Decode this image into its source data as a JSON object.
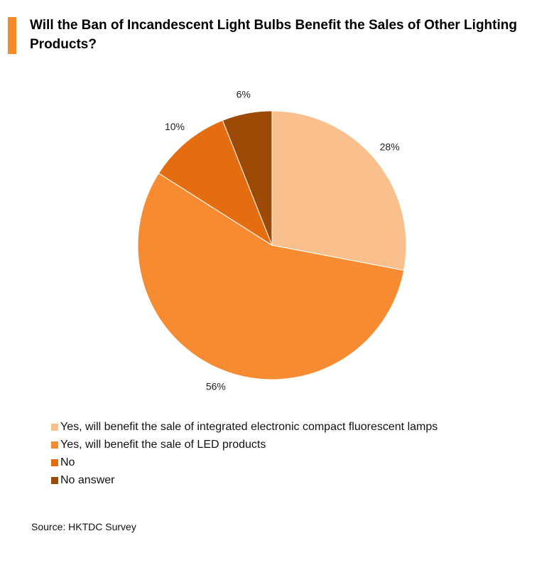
{
  "chart_data": {
    "type": "pie",
    "title": "Will the Ban of Incandescent Light Bulbs Benefit the Sales of Other Lighting Products?",
    "categories": [
      "Yes, will benefit the sale of integrated electronic compact fluorescent lamps",
      "Yes, will benefit the sale of LED products",
      "No",
      "No answer"
    ],
    "values": [
      28,
      56,
      10,
      6
    ],
    "value_labels": [
      "28%",
      "56%",
      "10%",
      "6%"
    ],
    "colors": [
      "#f9c08e",
      "#f78b32",
      "#e56d11",
      "#9c4a06"
    ],
    "start": "12 o'clock, clockwise",
    "legend_position": "bottom-left"
  },
  "source": "Source: HKTDC Survey",
  "colors": {
    "accent_bar": "#f28c28"
  }
}
